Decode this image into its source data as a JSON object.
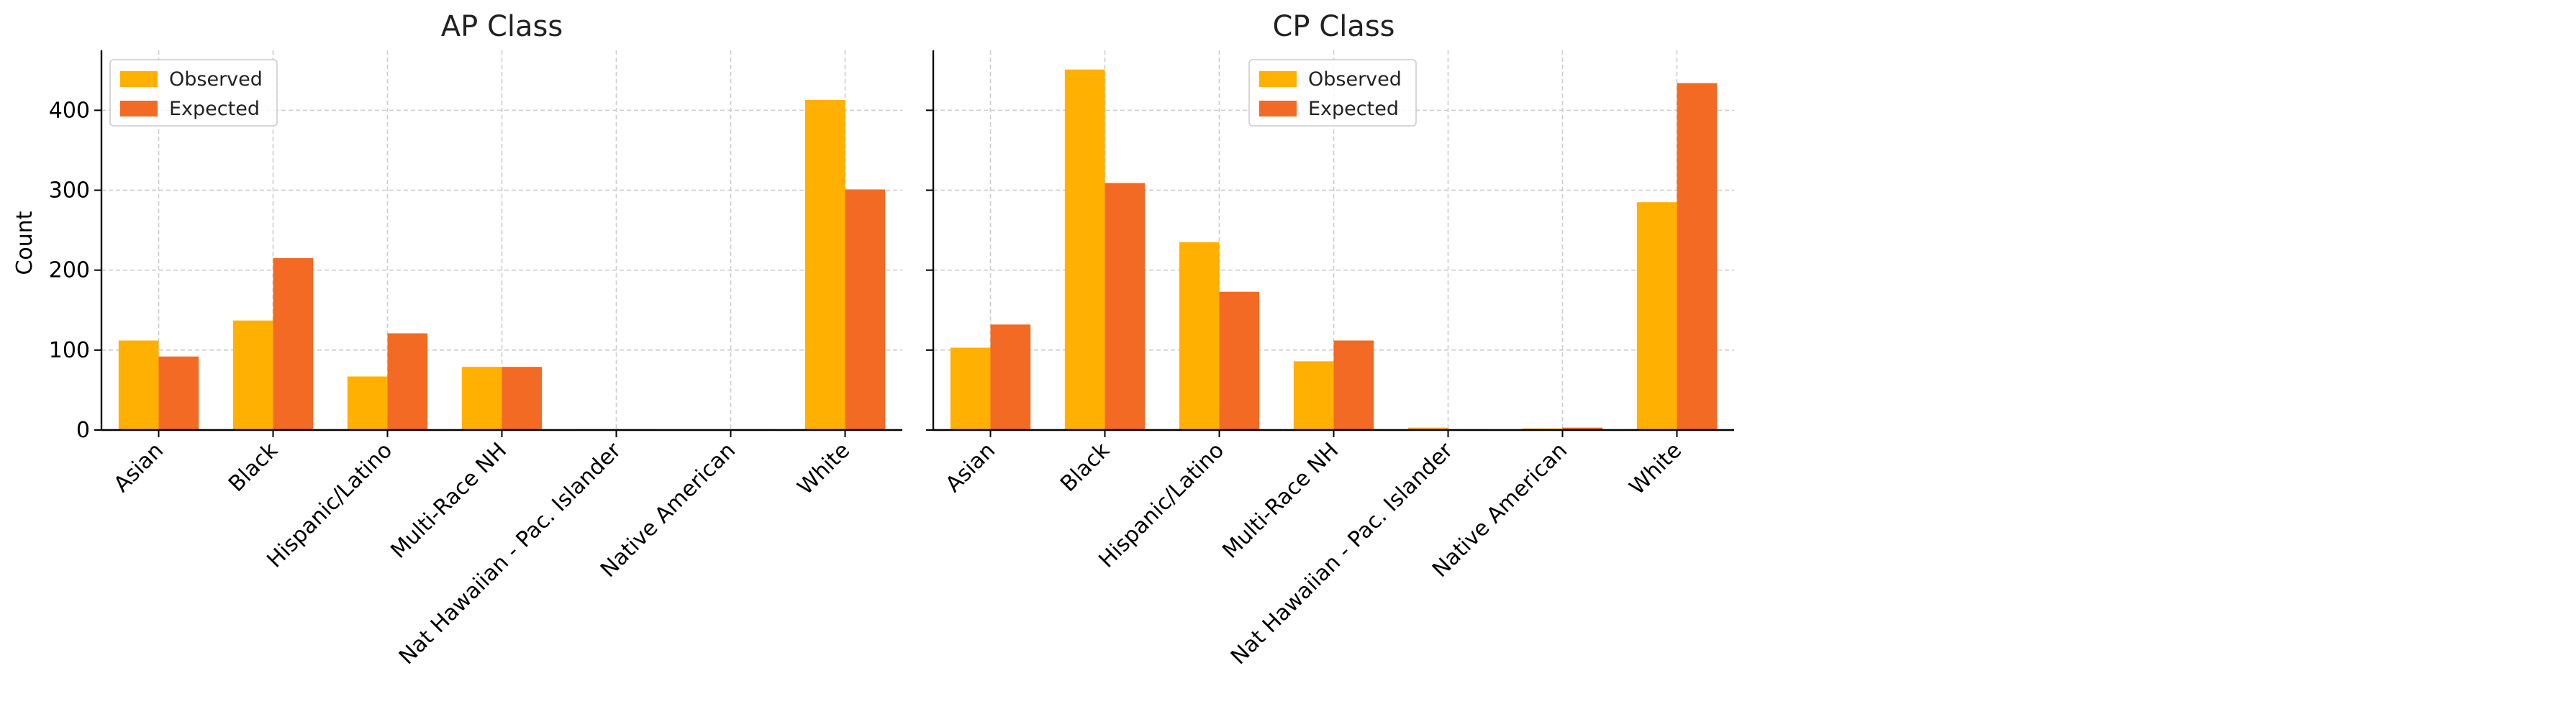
{
  "ylabel": "Count",
  "colors": {
    "observed": "#FFB000",
    "expected": "#F26A24",
    "grid": "#cccccc",
    "axis": "#000000"
  },
  "chart_data": [
    {
      "type": "bar",
      "title": "AP Class",
      "xlabel": "",
      "ylabel": "Count",
      "categories": [
        "Asian",
        "Black",
        "Hispanic/Latino",
        "Multi-Race NH",
        "Nat Hawaiian - Pac. Islander",
        "Native American",
        "White"
      ],
      "series": [
        {
          "name": "Observed",
          "values": [
            112,
            137,
            67,
            79,
            1,
            0,
            413
          ]
        },
        {
          "name": "Expected",
          "values": [
            92,
            215,
            121,
            79,
            1,
            1,
            301
          ]
        }
      ],
      "ylim": [
        0,
        475
      ],
      "yticks": [
        0,
        100,
        200,
        300,
        400
      ],
      "grid": true,
      "legend": "top-left"
    },
    {
      "type": "bar",
      "title": "CP Class",
      "xlabel": "",
      "categories": [
        "Asian",
        "Black",
        "Hispanic/Latino",
        "Multi-Race NH",
        "Nat Hawaiian - Pac. Islander",
        "Native American",
        "White"
      ],
      "series": [
        {
          "name": "Observed",
          "values": [
            103,
            451,
            235,
            86,
            3,
            2,
            285
          ]
        },
        {
          "name": "Expected",
          "values": [
            132,
            309,
            173,
            112,
            1,
            3,
            434
          ]
        }
      ],
      "ylim": [
        0,
        475
      ],
      "yticks": [
        0,
        100,
        200,
        300,
        400
      ],
      "grid": true,
      "legend": "top-center"
    }
  ]
}
